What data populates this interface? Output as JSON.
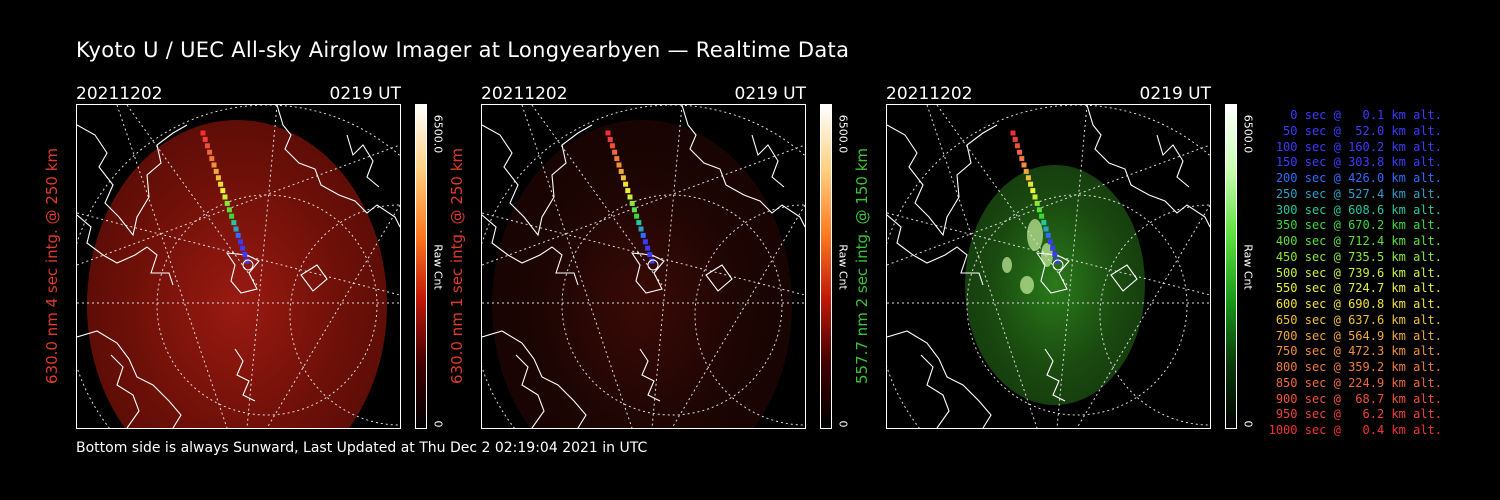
{
  "title": "Kyoto U / UEC All-sky Airglow Imager at Longyearbyen — Realtime Data",
  "footer": "Bottom side is always Sunward, Last Updated at Thu Dec  2 02:19:04 2021 in UTC",
  "panels": [
    {
      "date": "20211202",
      "time": "0219 UT",
      "ylabel": "630.0 nm 4 sec intg. @ 250 km",
      "label_color": "#e03a2a",
      "cb_max": "6500.0",
      "cb_unit": "Raw Cnt",
      "cb_min": "0",
      "colormap": "red",
      "glow_color": "#7a1008"
    },
    {
      "date": "20211202",
      "time": "0219 UT",
      "ylabel": "630.0 nm 1 sec intg. @ 250 km",
      "label_color": "#e03a2a",
      "cb_max": "6500.0",
      "cb_unit": "Raw Cnt",
      "cb_min": "0",
      "colormap": "red",
      "glow_color": "#2a0604"
    },
    {
      "date": "20211202",
      "time": "0219 UT",
      "ylabel": "557.7 nm 2 sec intg. @ 150 km",
      "label_color": "#3ac43a",
      "cb_max": "6500.0",
      "cb_unit": "Raw Cnt",
      "cb_min": "0",
      "colormap": "green",
      "glow_color": "#1e5a12"
    }
  ],
  "legend": [
    {
      "text": "0 sec @   0.1 km alt.",
      "color": "#3b3bff"
    },
    {
      "text": "50 sec @  52.0 km alt.",
      "color": "#3b3bff"
    },
    {
      "text": "100 sec @ 160.2 km alt.",
      "color": "#3b3bff"
    },
    {
      "text": "150 sec @ 303.8 km alt.",
      "color": "#3b3bff"
    },
    {
      "text": "200 sec @ 426.0 km alt.",
      "color": "#2f6cff"
    },
    {
      "text": "250 sec @ 527.4 km alt.",
      "color": "#2aa0c8"
    },
    {
      "text": "300 sec @ 608.6 km alt.",
      "color": "#24c8a0"
    },
    {
      "text": "350 sec @ 670.2 km alt.",
      "color": "#3ad83a"
    },
    {
      "text": "400 sec @ 712.4 km alt.",
      "color": "#5ae03a"
    },
    {
      "text": "450 sec @ 735.5 km alt.",
      "color": "#8ae83a"
    },
    {
      "text": "500 sec @ 739.6 km alt.",
      "color": "#c8f03a"
    },
    {
      "text": "550 sec @ 724.7 km alt.",
      "color": "#e8f03a"
    },
    {
      "text": "600 sec @ 690.8 km alt.",
      "color": "#f0e03a"
    },
    {
      "text": "650 sec @ 637.6 km alt.",
      "color": "#f0c03a"
    },
    {
      "text": "700 sec @ 564.9 km alt.",
      "color": "#f0a83a"
    },
    {
      "text": "750 sec @ 472.3 km alt.",
      "color": "#f0903a"
    },
    {
      "text": "800 sec @ 359.2 km alt.",
      "color": "#f07a3a"
    },
    {
      "text": "850 sec @ 224.9 km alt.",
      "color": "#f0683a"
    },
    {
      "text": "900 sec @  68.7 km alt.",
      "color": "#f0503a"
    },
    {
      "text": "950 sec @   6.2 km alt.",
      "color": "#f0403a"
    },
    {
      "text": "1000 sec @   0.4 km alt.",
      "color": "#f03030"
    }
  ]
}
